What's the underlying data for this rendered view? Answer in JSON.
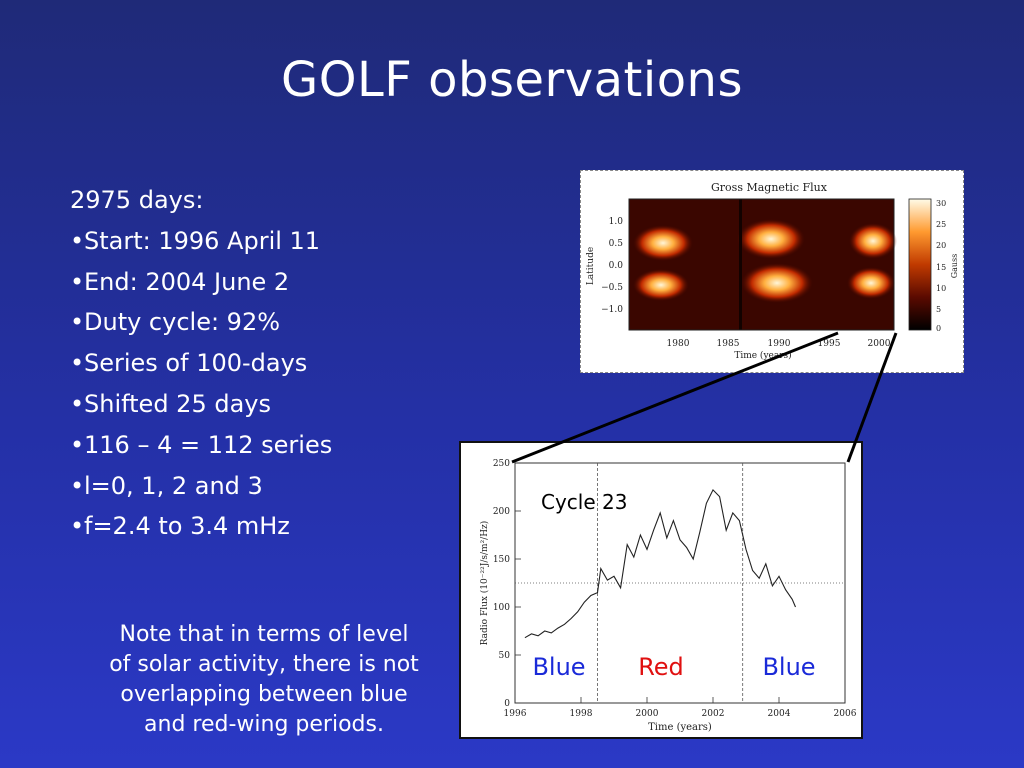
{
  "slide": {
    "title": "GOLF observations",
    "intro": "2975 days:",
    "bullets": [
      "Start: 1996 April 11",
      "End: 2004 June 2",
      "Duty cycle: 92%",
      "Series of 100-days",
      "Shifted 25 days",
      "116 – 4 = 112 series",
      "l=0, 1, 2 and 3",
      "f=2.4 to 3.4 mHz"
    ],
    "note_lines": [
      "Note that in terms of level",
      "of solar activity, there is not",
      "overlapping between blue",
      "and red-wing periods."
    ]
  },
  "colors": {
    "background_top": "#1f2a78",
    "background_bottom": "#2b39c6",
    "blue_label": "#1a2ad8",
    "red_label": "#e01010"
  },
  "chart_data": [
    {
      "type": "heatmap",
      "title": "Gross Magnetic Flux",
      "xlabel": "Time (years)",
      "ylabel": "Latitude",
      "x_ticks": [
        "1980",
        "1985",
        "1990",
        "1995",
        "2000"
      ],
      "y_ticks": [
        "1.0",
        "0.5",
        "0.0",
        "−0.5",
        "−1.0"
      ],
      "colorbar": {
        "label": "Gauss",
        "ticks": [
          "30",
          "25",
          "20",
          "15",
          "10",
          "5",
          "0"
        ],
        "range": [
          0,
          30
        ]
      }
    },
    {
      "type": "line",
      "xlabel": "Time (years)",
      "ylabel": "Radio Flux (10⁻²²J/s/m²/Hz)",
      "x_ticks": [
        "1996",
        "1998",
        "2000",
        "2002",
        "2004",
        "2006"
      ],
      "y_ticks": [
        "0",
        "50",
        "100",
        "150",
        "200",
        "250"
      ],
      "xlim": [
        1996,
        2006
      ],
      "ylim": [
        0,
        250
      ],
      "annotation": "Cycle 23",
      "region_labels": [
        "Blue",
        "Red",
        "Blue"
      ],
      "dividers_x": [
        1998.5,
        2002.9
      ],
      "reference_level": 125,
      "series": [
        {
          "x": [
            1996.3,
            1996.5,
            1996.7,
            1996.9,
            1997.1,
            1997.3,
            1997.5,
            1997.7,
            1997.9,
            1998.1,
            1998.3,
            1998.5,
            1998.6,
            1998.8,
            1999.0,
            1999.2,
            1999.4,
            1999.6,
            1999.8,
            2000.0,
            2000.2,
            2000.4,
            2000.6,
            2000.8,
            2001.0,
            2001.2,
            2001.4,
            2001.6,
            2001.8,
            2002.0,
            2002.2,
            2002.4,
            2002.6,
            2002.8,
            2003.0,
            2003.2,
            2003.4,
            2003.6,
            2003.8,
            2004.0,
            2004.2,
            2004.4,
            2004.5
          ],
          "values": [
            68,
            72,
            70,
            75,
            73,
            78,
            82,
            88,
            95,
            105,
            112,
            115,
            140,
            128,
            132,
            120,
            165,
            152,
            175,
            160,
            180,
            198,
            172,
            190,
            170,
            162,
            150,
            178,
            208,
            222,
            215,
            180,
            198,
            190,
            160,
            138,
            130,
            145,
            122,
            132,
            118,
            108,
            100
          ]
        }
      ]
    }
  ]
}
